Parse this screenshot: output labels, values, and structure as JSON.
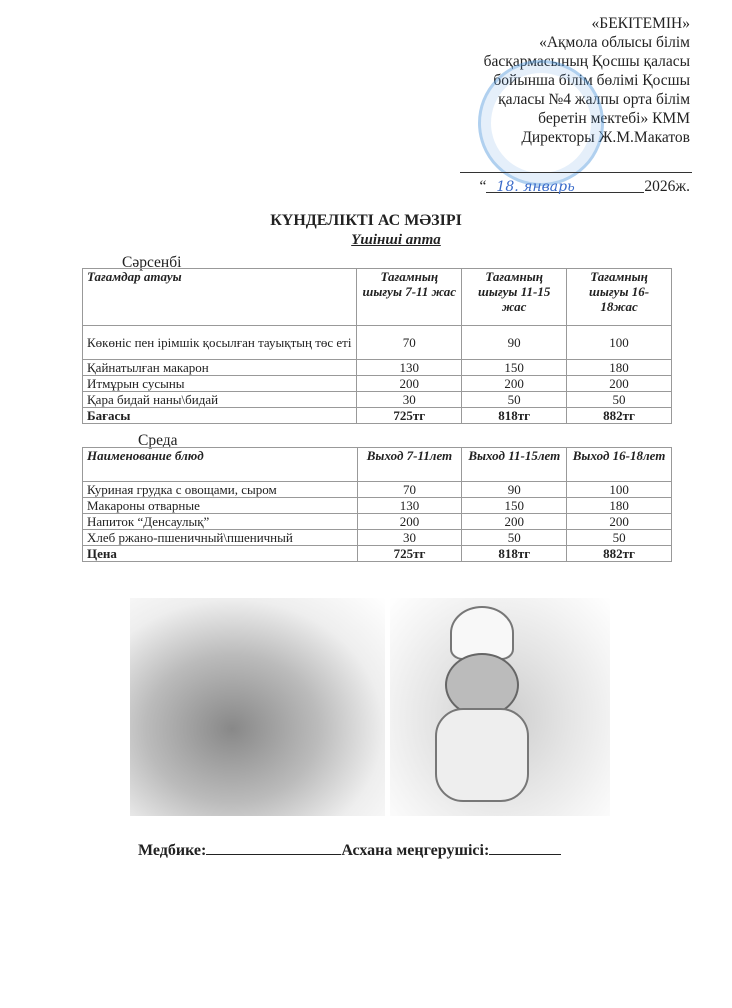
{
  "approval": {
    "lines": [
      "«БЕКІТЕМІН»",
      "«Ақмола облысы білім",
      "басқармасының Қосшы қаласы",
      "бойынша білім бөлімі Қосшы",
      "қаласы №4 жалпы орта білім",
      "беретін мектебі» КММ",
      "Директоры  Ж.М.Макатов"
    ],
    "date_open": "“",
    "date_handwritten": "18.  январь",
    "date_year": "2026ж."
  },
  "title": "КҮНДЕЛІКТІ АС МӘЗІРІ",
  "subtitle": "Үшінші  апта",
  "kz": {
    "day": "Сәрсенбі",
    "headers": [
      "Тағамдар атауы",
      "Тағамның шығуы 7-11 жас",
      "Тағамның шығуы 11-15 жас",
      "Тағамның шығуы 16-18жас"
    ],
    "rows": [
      [
        "Көкөніс пен ірімшік қосылған тауықтың төс еті",
        "70",
        "90",
        "100"
      ],
      [
        "Қайнатылған макарон",
        "130",
        "150",
        "180"
      ],
      [
        "Итмұрын сусыны",
        "200",
        "200",
        "200"
      ],
      [
        "Қара бидай наны\\бидай",
        "30",
        "50",
        "50"
      ]
    ],
    "total": [
      "Бағасы",
      "725тг",
      "818тг",
      "882тг"
    ]
  },
  "ru": {
    "day": "Среда",
    "headers": [
      "Наименование блюд",
      "Выход 7-11лет",
      "Выход 11-15лет",
      "Выход 16-18лет"
    ],
    "rows": [
      [
        "Куриная грудка с овощами, сыром",
        "70",
        "90",
        "100"
      ],
      [
        "Макароны отварные",
        "130",
        "150",
        "180"
      ],
      [
        "Напиток “Денсаулық”",
        "200",
        "200",
        "200"
      ],
      [
        "Хлеб ржано-пшеничный\\пшеничный",
        "30",
        "50",
        "50"
      ]
    ],
    "total": [
      "Цена",
      "725тг",
      "818тг",
      "882тг"
    ]
  },
  "footer": {
    "nurse": "Медбике:",
    "canteen": "Асхана меңгерушісі:"
  }
}
